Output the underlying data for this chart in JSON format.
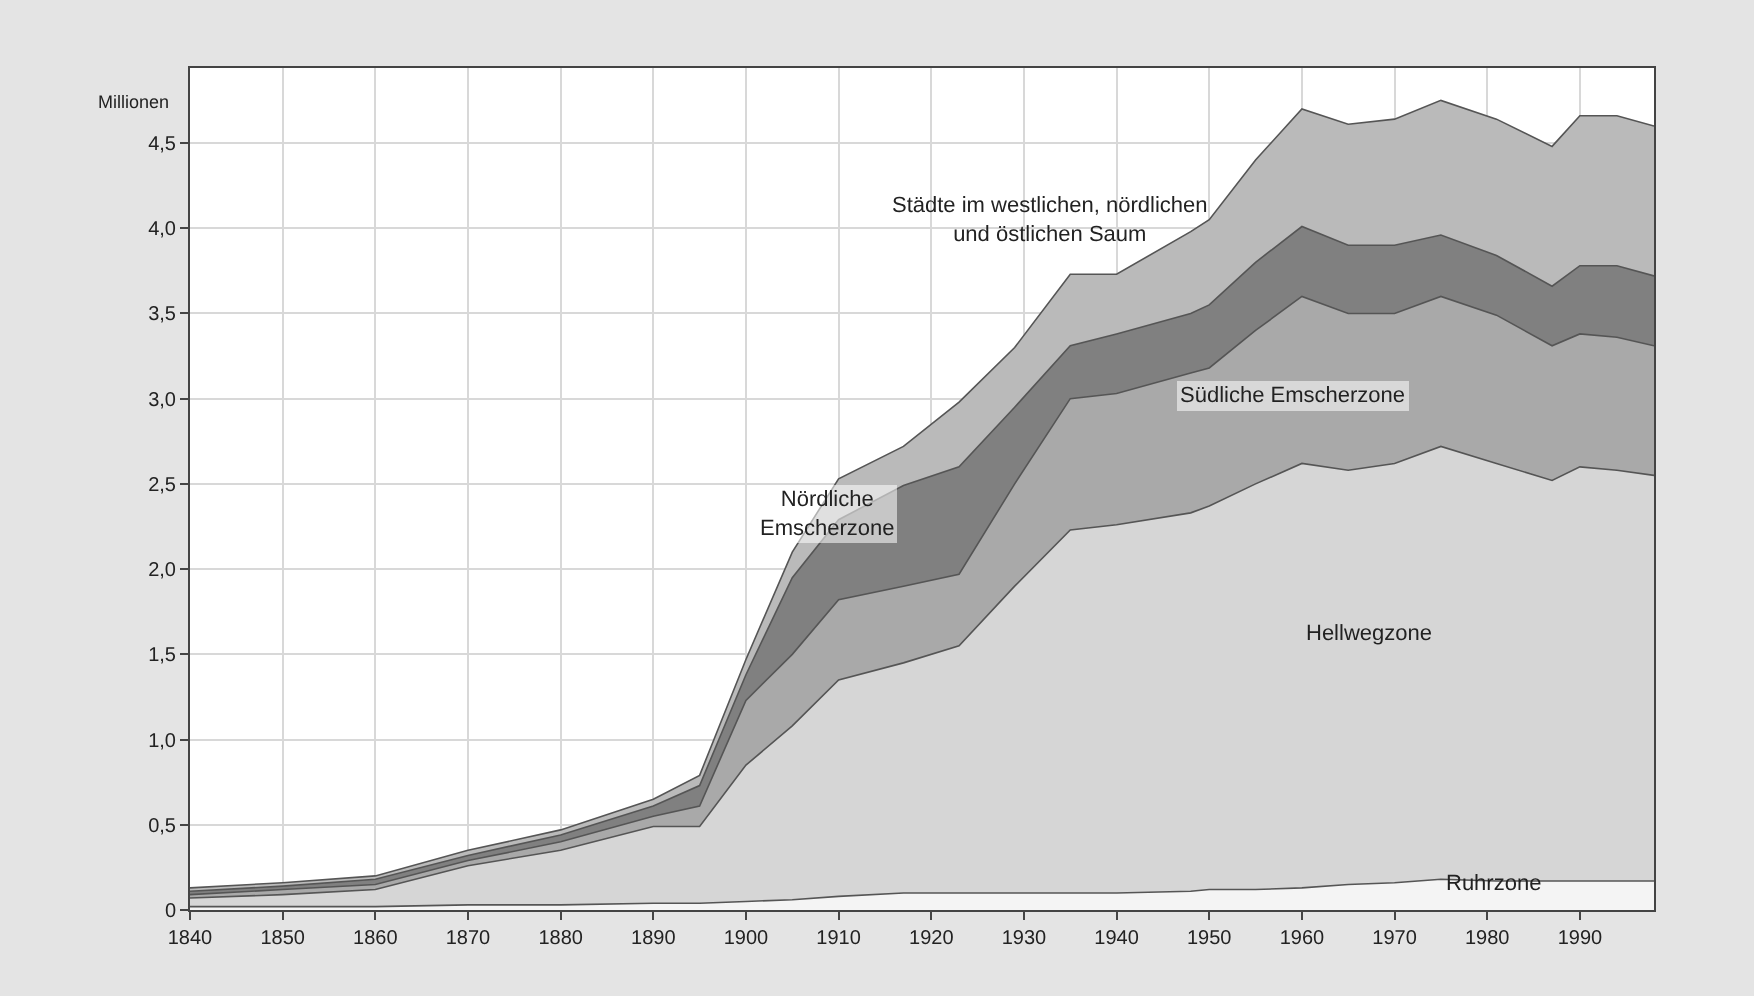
{
  "chart_data": {
    "type": "area",
    "stacked": true,
    "ylabel": "Millionen",
    "legend": false,
    "grid": true,
    "x": [
      1840,
      1850,
      1860,
      1870,
      1880,
      1890,
      1895,
      1900,
      1905,
      1910,
      1917,
      1923,
      1929,
      1935,
      1940,
      1948,
      1950,
      1955,
      1960,
      1965,
      1970,
      1975,
      1981,
      1987,
      1990,
      1994,
      1998
    ],
    "xlim": [
      1840,
      1998
    ],
    "xticks": [
      1840,
      1850,
      1860,
      1870,
      1880,
      1890,
      1900,
      1910,
      1920,
      1930,
      1940,
      1950,
      1960,
      1970,
      1980,
      1990
    ],
    "ylim": [
      0,
      4.94
    ],
    "yticks": [
      0,
      {
        "value": 0.5,
        "label": "0,5"
      },
      {
        "value": 1,
        "label": "1,0"
      },
      {
        "value": 1.5,
        "label": "1,5"
      },
      {
        "value": 2,
        "label": "2,0"
      },
      {
        "value": 2.5,
        "label": "2,5"
      },
      {
        "value": 3,
        "label": "3,0"
      },
      {
        "value": 3.5,
        "label": "3,5"
      },
      {
        "value": 4,
        "label": "4,0"
      },
      {
        "value": 4.5,
        "label": "4,5"
      }
    ],
    "series": [
      {
        "name": "Ruhrzone",
        "color": "#f4f4f4",
        "values": [
          0.02,
          0.02,
          0.02,
          0.03,
          0.03,
          0.04,
          0.04,
          0.05,
          0.06,
          0.08,
          0.1,
          0.1,
          0.1,
          0.1,
          0.1,
          0.11,
          0.12,
          0.12,
          0.13,
          0.15,
          0.16,
          0.18,
          0.17,
          0.17,
          0.17,
          0.17,
          0.17
        ]
      },
      {
        "name": "Hellwegzone",
        "color": "#d6d6d6",
        "values": [
          0.05,
          0.07,
          0.1,
          0.23,
          0.32,
          0.45,
          0.45,
          0.8,
          1.02,
          1.27,
          1.35,
          1.45,
          1.8,
          2.13,
          2.16,
          2.22,
          2.25,
          2.38,
          2.49,
          2.43,
          2.46,
          2.54,
          2.45,
          2.35,
          2.43,
          2.41,
          2.38
        ]
      },
      {
        "name": "Südliche Emscherzone",
        "color": "#a9a9a9",
        "values": [
          0.02,
          0.03,
          0.03,
          0.03,
          0.05,
          0.06,
          0.12,
          0.38,
          0.42,
          0.47,
          0.45,
          0.42,
          0.6,
          0.77,
          0.77,
          0.82,
          0.81,
          0.9,
          0.98,
          0.92,
          0.88,
          0.88,
          0.87,
          0.79,
          0.78,
          0.78,
          0.76
        ]
      },
      {
        "name": "Nördliche\nEmscherzone",
        "color": "#808080",
        "values": [
          0.02,
          0.02,
          0.03,
          0.03,
          0.04,
          0.06,
          0.12,
          0.15,
          0.45,
          0.47,
          0.59,
          0.63,
          0.45,
          0.31,
          0.35,
          0.35,
          0.37,
          0.4,
          0.41,
          0.4,
          0.4,
          0.36,
          0.35,
          0.35,
          0.4,
          0.42,
          0.41
        ]
      },
      {
        "name": "Städte im westlichen, nördlichen\nund östlichen Saum",
        "color": "#bababa",
        "values": [
          0.02,
          0.02,
          0.02,
          0.03,
          0.03,
          0.04,
          0.06,
          0.09,
          0.15,
          0.24,
          0.23,
          0.38,
          0.35,
          0.42,
          0.35,
          0.48,
          0.5,
          0.6,
          0.69,
          0.71,
          0.74,
          0.79,
          0.8,
          0.82,
          0.88,
          0.88,
          0.88
        ]
      }
    ]
  }
}
